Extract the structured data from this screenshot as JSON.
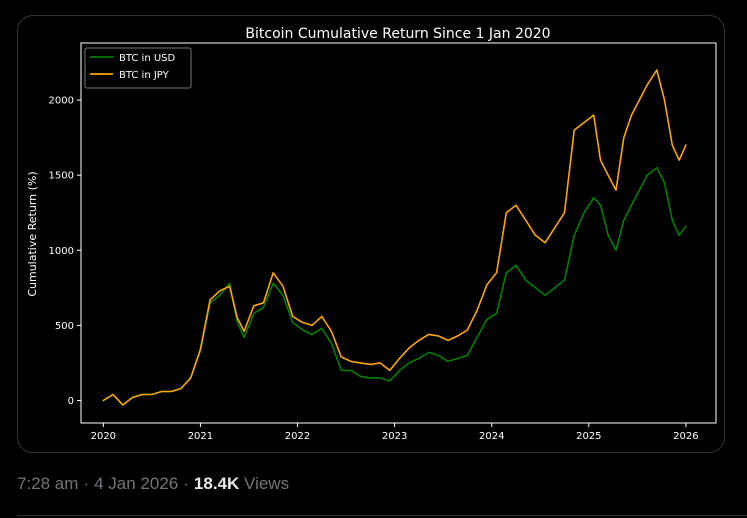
{
  "tweet": {
    "time": "7:28 am",
    "date": "4 Jan 2026",
    "views_count": "18.4K",
    "views_label": "Views"
  },
  "colors": {
    "background": "#000000",
    "axis": "#ffffff",
    "usd_series": "#008000",
    "jpy_series": "#ffa500",
    "meta_text": "#71767b"
  },
  "chart_data": {
    "type": "line",
    "title": "Bitcoin Cumulative Return Since 1 Jan 2020",
    "xlabel": "",
    "ylabel": "Cumulative Return (%)",
    "xlim": [
      2019.77,
      2026.31
    ],
    "ylim": [
      -150,
      2380
    ],
    "x_ticks": [
      2020,
      2021,
      2022,
      2023,
      2024,
      2025,
      2026
    ],
    "x_tick_labels": [
      "2020",
      "2021",
      "2022",
      "2023",
      "2024",
      "2025",
      "2026"
    ],
    "y_ticks": [
      0,
      500,
      1000,
      1500,
      2000
    ],
    "y_tick_labels": [
      "0",
      "500",
      "1000",
      "1500",
      "2000"
    ],
    "legend_position": "top-left",
    "grid": false,
    "series": [
      {
        "name": "BTC in USD",
        "color": "#008000",
        "x": [
          2020.0,
          2020.1,
          2020.2,
          2020.3,
          2020.4,
          2020.5,
          2020.6,
          2020.7,
          2020.8,
          2020.9,
          2021.0,
          2021.1,
          2021.2,
          2021.3,
          2021.38,
          2021.45,
          2021.55,
          2021.65,
          2021.75,
          2021.85,
          2021.95,
          2022.05,
          2022.15,
          2022.25,
          2022.35,
          2022.45,
          2022.55,
          2022.65,
          2022.75,
          2022.85,
          2022.95,
          2023.05,
          2023.15,
          2023.25,
          2023.35,
          2023.45,
          2023.55,
          2023.65,
          2023.75,
          2023.85,
          2023.95,
          2024.05,
          2024.15,
          2024.25,
          2024.35,
          2024.45,
          2024.55,
          2024.65,
          2024.75,
          2024.85,
          2024.95,
          2025.05,
          2025.12,
          2025.2,
          2025.28,
          2025.36,
          2025.44,
          2025.52,
          2025.6,
          2025.7,
          2025.78,
          2025.86,
          2025.93,
          2026.0
        ],
        "values": [
          0,
          40,
          -30,
          20,
          40,
          40,
          60,
          60,
          80,
          150,
          330,
          650,
          700,
          780,
          520,
          420,
          580,
          620,
          780,
          700,
          520,
          470,
          440,
          480,
          380,
          200,
          200,
          160,
          150,
          150,
          130,
          200,
          250,
          280,
          320,
          300,
          260,
          280,
          300,
          420,
          540,
          580,
          850,
          900,
          800,
          750,
          700,
          750,
          800,
          1100,
          1250,
          1350,
          1300,
          1100,
          1000,
          1200,
          1300,
          1400,
          1500,
          1550,
          1450,
          1200,
          1100,
          1160
        ]
      },
      {
        "name": "BTC in JPY",
        "color": "#ffa500",
        "x": [
          2020.0,
          2020.1,
          2020.2,
          2020.3,
          2020.4,
          2020.5,
          2020.6,
          2020.7,
          2020.8,
          2020.9,
          2021.0,
          2021.1,
          2021.2,
          2021.3,
          2021.38,
          2021.45,
          2021.55,
          2021.65,
          2021.75,
          2021.85,
          2021.95,
          2022.05,
          2022.15,
          2022.25,
          2022.35,
          2022.45,
          2022.55,
          2022.65,
          2022.75,
          2022.85,
          2022.95,
          2023.05,
          2023.15,
          2023.25,
          2023.35,
          2023.45,
          2023.55,
          2023.65,
          2023.75,
          2023.85,
          2023.95,
          2024.05,
          2024.15,
          2024.25,
          2024.35,
          2024.45,
          2024.55,
          2024.65,
          2024.75,
          2024.85,
          2024.95,
          2025.05,
          2025.12,
          2025.2,
          2025.28,
          2025.36,
          2025.44,
          2025.52,
          2025.6,
          2025.7,
          2025.78,
          2025.86,
          2025.93,
          2026.0
        ],
        "values": [
          0,
          40,
          -30,
          20,
          40,
          40,
          60,
          60,
          80,
          150,
          340,
          670,
          730,
          760,
          550,
          460,
          630,
          650,
          850,
          760,
          560,
          520,
          500,
          560,
          460,
          290,
          260,
          250,
          240,
          250,
          200,
          280,
          350,
          400,
          440,
          430,
          400,
          430,
          470,
          600,
          770,
          850,
          1250,
          1300,
          1200,
          1100,
          1050,
          1150,
          1250,
          1800,
          1850,
          1900,
          1600,
          1500,
          1400,
          1750,
          1900,
          2000,
          2100,
          2200,
          2000,
          1700,
          1600,
          1700
        ]
      }
    ]
  }
}
